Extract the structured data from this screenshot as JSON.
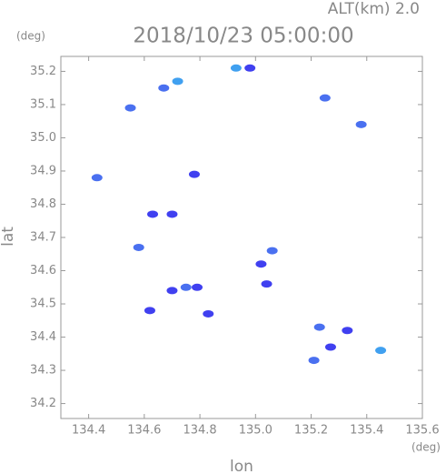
{
  "chart_data": {
    "type": "scatter",
    "title": "2018/10/23 05:00:00",
    "subtitle": "ALT(km) 2.0",
    "y_unit": "(deg)",
    "x_unit": "(deg)",
    "x_label": "lon",
    "y_label": "lat",
    "x": [
      134.55,
      134.67,
      134.72,
      134.93,
      134.98,
      135.25,
      135.38,
      134.43,
      134.78,
      134.63,
      134.7,
      134.58,
      135.06,
      135.04,
      135.02,
      134.75,
      134.79,
      134.62,
      134.83,
      135.23,
      135.33,
      135.27,
      135.21,
      135.45,
      134.7
    ],
    "values": [
      35.09,
      35.15,
      35.17,
      35.21,
      35.21,
      35.12,
      35.04,
      34.88,
      34.89,
      34.77,
      34.77,
      34.67,
      34.66,
      34.56,
      34.62,
      34.55,
      34.55,
      34.48,
      34.47,
      34.43,
      34.42,
      34.37,
      34.33,
      34.36,
      34.54
    ],
    "colors": [
      "#4a70f0",
      "#4a70f0",
      "#40a0f0",
      "#40a0f0",
      "#4040f0",
      "#4a70f0",
      "#4a70f0",
      "#4a70f0",
      "#4040f0",
      "#4040f0",
      "#4040f0",
      "#4a70f0",
      "#4a70f0",
      "#4040f0",
      "#4040f0",
      "#4a70f0",
      "#4040f0",
      "#4040f0",
      "#4040f0",
      "#4a70f0",
      "#4040f0",
      "#4040f0",
      "#4a70f0",
      "#40a0f0",
      "#4040f0"
    ],
    "xlim": [
      134.3,
      135.6
    ],
    "ylim": [
      34.155,
      35.245
    ],
    "xticks": [
      134.4,
      134.6,
      134.8,
      {
        "value": 135,
        "label": "135.0"
      },
      135.2,
      135.4,
      135.6
    ],
    "yticks": [
      34.2,
      34.3,
      34.4,
      34.5,
      34.6,
      34.7,
      34.8,
      34.9,
      {
        "value": 35,
        "label": "35.0"
      },
      35.1,
      35.2
    ]
  }
}
